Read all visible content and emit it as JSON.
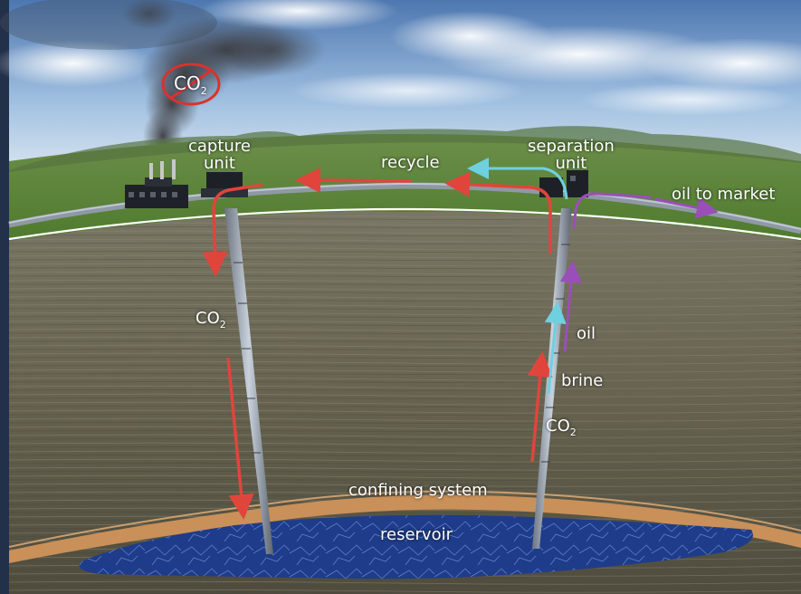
{
  "labels": {
    "co2_emission": {
      "main": "CO",
      "sub": "2"
    },
    "capture_line1": "capture",
    "capture_line2": "unit",
    "separation_line1": "separation",
    "separation_line2": "unit",
    "recycle": "recycle",
    "oil_to_market": "oil to market",
    "co2_injection": {
      "main": "CO",
      "sub": "2"
    },
    "oil": "oil",
    "brine": "brine",
    "co2_return": {
      "main": "CO",
      "sub": "2"
    },
    "confining_system": "confining system",
    "reservoir": "reservoir"
  },
  "colors": {
    "co2_flow": "#e0453c",
    "brine_flow": "#6fd0e0",
    "oil_flow": "#9a4fb8",
    "no_emission_symbol": "#d9322e",
    "ground_line": "#ffffff",
    "grass": "#5f8a3a",
    "rock": "#6a6656",
    "confining_layer": "#c9905a",
    "reservoir_water": "#1e3c8a"
  },
  "icons": {
    "no_emission": "prohibited-circle",
    "plant": "factory-building"
  }
}
